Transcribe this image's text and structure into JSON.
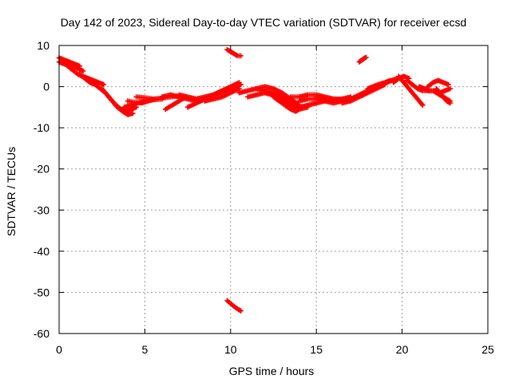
{
  "chart_data": {
    "type": "scatter",
    "title": "Day 142 of 2023, Sidereal Day-to-day VTEC variation (SDTVAR) for receiver ecsd",
    "xlabel": "GPS time / hours",
    "ylabel": "SDTVAR / TECUs",
    "xlim": [
      0,
      25
    ],
    "ylim": [
      -60,
      10
    ],
    "xticks": [
      0,
      5,
      10,
      15,
      20,
      25
    ],
    "yticks": [
      10,
      0,
      -10,
      -20,
      -30,
      -40,
      -50,
      -60
    ],
    "grid": true,
    "marker": "plus",
    "color": "#ff0000",
    "series": [
      {
        "name": "sdtvar",
        "segments": [
          {
            "x": [
              0.0,
              0.3,
              0.6,
              0.9,
              1.2
            ],
            "y": [
              7.0,
              6.5,
              6.0,
              5.5,
              5.0
            ]
          },
          {
            "x": [
              0.0,
              0.3,
              0.6,
              0.9,
              1.2,
              1.4
            ],
            "y": [
              6.0,
              5.5,
              5.0,
              4.8,
              4.2,
              3.8
            ]
          },
          {
            "x": [
              0.5,
              0.8,
              1.1,
              1.4,
              1.7,
              2.0,
              2.3,
              2.6
            ],
            "y": [
              5.0,
              4.0,
              3.0,
              2.5,
              2.0,
              1.5,
              1.0,
              0.5
            ]
          },
          {
            "x": [
              1.2,
              1.5,
              1.8,
              2.1,
              2.4,
              2.7
            ],
            "y": [
              3.0,
              2.0,
              1.0,
              0.5,
              -0.5,
              -1.5
            ]
          },
          {
            "x": [
              2.5,
              2.8,
              3.1,
              3.4,
              3.7,
              4.0
            ],
            "y": [
              -0.5,
              -2.0,
              -3.5,
              -4.8,
              -5.8,
              -6.5
            ]
          },
          {
            "x": [
              2.8,
              3.1,
              3.4,
              3.7,
              4.0,
              4.3
            ],
            "y": [
              -2.0,
              -3.5,
              -5.0,
              -6.0,
              -6.8,
              -6.5
            ]
          },
          {
            "x": [
              3.3,
              3.6,
              3.9,
              4.2,
              4.5
            ],
            "y": [
              -4.5,
              -5.5,
              -6.0,
              -5.5,
              -5.0
            ]
          },
          {
            "x": [
              3.8,
              4.2,
              4.6,
              5.0,
              5.5,
              6.0
            ],
            "y": [
              -5.0,
              -4.5,
              -4.0,
              -3.5,
              -3.2,
              -3.0
            ]
          },
          {
            "x": [
              4.0,
              4.4,
              4.8,
              5.2,
              5.6
            ],
            "y": [
              -3.5,
              -3.8,
              -4.0,
              -3.5,
              -3.0
            ]
          },
          {
            "x": [
              4.5,
              5.0,
              5.5,
              6.0,
              6.5,
              7.0
            ],
            "y": [
              -2.5,
              -2.7,
              -3.0,
              -2.8,
              -2.5,
              -2.2
            ]
          },
          {
            "x": [
              6.0,
              6.5,
              7.0,
              7.5,
              8.0
            ],
            "y": [
              -2.5,
              -2.0,
              -2.5,
              -3.0,
              -3.5
            ]
          },
          {
            "x": [
              6.2,
              6.6,
              7.0,
              7.4
            ],
            "y": [
              -5.5,
              -4.5,
              -3.5,
              -2.5
            ]
          },
          {
            "x": [
              7.0,
              7.5,
              8.0,
              8.5,
              9.0,
              9.5,
              10.0
            ],
            "y": [
              -2.0,
              -2.5,
              -3.0,
              -2.5,
              -2.0,
              -1.5,
              -1.0
            ]
          },
          {
            "x": [
              7.5,
              8.0,
              8.5,
              9.0,
              9.5
            ],
            "y": [
              -5.0,
              -4.0,
              -3.0,
              -2.0,
              -1.0
            ]
          },
          {
            "x": [
              8.0,
              8.5,
              9.0,
              9.5,
              10.0,
              10.5
            ],
            "y": [
              -4.0,
              -3.0,
              -2.0,
              -1.0,
              0.0,
              1.0
            ]
          },
          {
            "x": [
              8.5,
              9.0,
              9.5,
              10.0,
              10.5
            ],
            "y": [
              -3.5,
              -3.0,
              -2.5,
              -1.5,
              -0.5
            ]
          },
          {
            "x": [
              9.0,
              9.3,
              9.6,
              10.0,
              10.3,
              10.6
            ],
            "y": [
              -2.0,
              -1.5,
              -1.0,
              -0.5,
              0.0,
              0.5
            ]
          },
          {
            "x": [
              9.8,
              10.0,
              10.2,
              10.4,
              10.6
            ],
            "y": [
              9.0,
              8.5,
              8.0,
              7.5,
              7.5
            ]
          },
          {
            "x": [
              9.8,
              10.0,
              10.2,
              10.4,
              10.6
            ],
            "y": [
              -52.0,
              -52.7,
              -53.4,
              -54.0,
              -54.5
            ]
          },
          {
            "x": [
              10.5,
              11.0,
              11.5,
              12.0,
              12.5,
              13.0
            ],
            "y": [
              -1.5,
              -1.0,
              -0.5,
              -1.0,
              -1.5,
              -2.0
            ]
          },
          {
            "x": [
              11.0,
              11.5,
              12.0,
              12.5,
              13.0,
              13.5
            ],
            "y": [
              -2.5,
              -2.0,
              -1.5,
              -2.0,
              -2.5,
              -3.0
            ]
          },
          {
            "x": [
              11.5,
              12.0,
              12.5,
              13.0,
              13.5,
              14.0
            ],
            "y": [
              -0.5,
              0.0,
              -0.5,
              -1.5,
              -3.0,
              -4.5
            ]
          },
          {
            "x": [
              12.0,
              12.5,
              13.0,
              13.5,
              14.0,
              14.5
            ],
            "y": [
              -1.5,
              -2.0,
              -3.0,
              -4.5,
              -5.5,
              -5.0
            ]
          },
          {
            "x": [
              12.5,
              13.0,
              13.5,
              13.8,
              14.0
            ],
            "y": [
              -2.5,
              -4.0,
              -5.5,
              -6.0,
              -5.5
            ]
          },
          {
            "x": [
              13.0,
              13.5,
              14.0,
              14.5,
              15.0,
              15.5
            ],
            "y": [
              -3.0,
              -4.0,
              -5.0,
              -4.5,
              -4.0,
              -3.5
            ]
          },
          {
            "x": [
              13.5,
              14.0,
              14.5,
              15.0,
              15.5,
              16.0,
              16.5
            ],
            "y": [
              -2.5,
              -2.5,
              -2.0,
              -2.0,
              -2.5,
              -3.0,
              -3.0
            ]
          },
          {
            "x": [
              14.0,
              14.5,
              15.0,
              15.5,
              16.0,
              16.5,
              17.0
            ],
            "y": [
              -3.5,
              -3.0,
              -3.0,
              -3.5,
              -4.0,
              -3.5,
              -3.0
            ]
          },
          {
            "x": [
              15.0,
              15.5,
              16.0,
              16.5,
              17.0
            ],
            "y": [
              -2.5,
              -3.0,
              -3.5,
              -3.0,
              -2.5
            ]
          },
          {
            "x": [
              16.0,
              16.5,
              17.0,
              17.5,
              18.0
            ],
            "y": [
              -3.0,
              -3.5,
              -3.0,
              -2.0,
              -1.0
            ]
          },
          {
            "x": [
              16.5,
              17.0,
              17.5,
              18.0,
              18.5,
              19.0
            ],
            "y": [
              -4.0,
              -3.5,
              -2.5,
              -1.5,
              -0.5,
              0.5
            ]
          },
          {
            "x": [
              17.5,
              17.6,
              17.7,
              17.8,
              17.9
            ],
            "y": [
              6.0,
              6.3,
              6.6,
              6.9,
              7.1
            ]
          },
          {
            "x": [
              18.0,
              18.3,
              18.6,
              19.0,
              19.3
            ],
            "y": [
              -0.5,
              0.0,
              0.5,
              1.0,
              1.5
            ]
          },
          {
            "x": [
              18.5,
              18.8,
              19.1,
              19.4,
              19.7,
              20.0
            ],
            "y": [
              0.0,
              0.5,
              1.0,
              1.5,
              2.0,
              2.0
            ]
          },
          {
            "x": [
              19.5,
              19.8,
              20.1,
              20.4
            ],
            "y": [
              1.0,
              2.0,
              2.5,
              2.0
            ]
          },
          {
            "x": [
              19.8,
              20.0,
              20.2,
              20.4,
              20.6,
              20.8,
              21.0,
              21.2
            ],
            "y": [
              2.5,
              1.5,
              0.5,
              -0.5,
              -1.5,
              -2.5,
              -3.5,
              -4.5
            ]
          },
          {
            "x": [
              20.3,
              20.6,
              20.9,
              21.2,
              21.5,
              21.8
            ],
            "y": [
              1.5,
              0.5,
              -0.5,
              -1.0,
              -1.0,
              -1.0
            ]
          },
          {
            "x": [
              21.0,
              21.3,
              21.6,
              21.9,
              22.2,
              22.5,
              22.8
            ],
            "y": [
              0.0,
              -0.5,
              -1.0,
              -1.0,
              -1.5,
              -1.0,
              -0.5
            ]
          },
          {
            "x": [
              21.5,
              21.8,
              22.1,
              22.4,
              22.7
            ],
            "y": [
              0.0,
              1.0,
              1.5,
              1.0,
              0.5
            ]
          },
          {
            "x": [
              21.8,
              22.0,
              22.2,
              22.4,
              22.6,
              22.8
            ],
            "y": [
              -1.0,
              -1.5,
              -2.0,
              -2.5,
              -3.0,
              -3.5
            ]
          },
          {
            "x": [
              22.0,
              22.2,
              22.4,
              22.6,
              22.8
            ],
            "y": [
              -0.5,
              -1.5,
              -2.5,
              -3.5,
              -4.0
            ]
          }
        ]
      }
    ]
  }
}
